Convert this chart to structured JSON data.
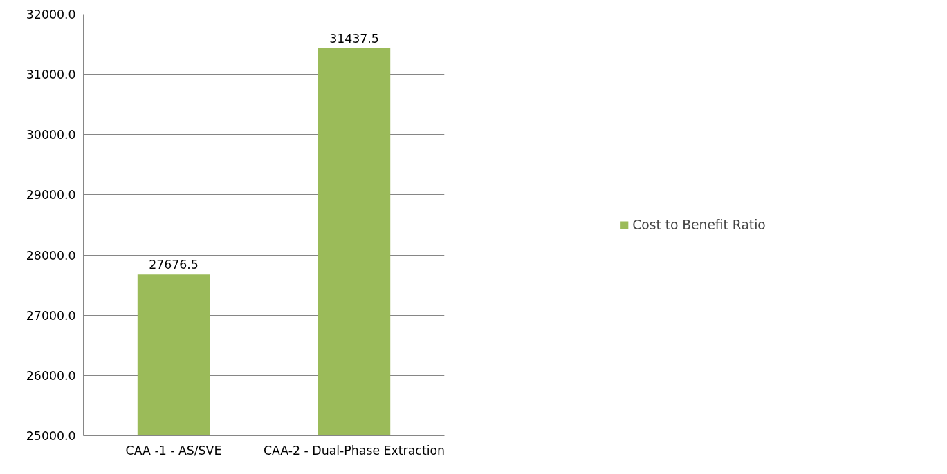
{
  "chart_data": {
    "type": "bar",
    "categories": [
      "CAA -1 - AS/SVE",
      "CAA-2 - Dual-Phase Extraction"
    ],
    "series": [
      {
        "name": "Cost to Benefit Ratio",
        "color": "#9bbb59",
        "values": [
          27676.5,
          31437.5
        ]
      }
    ],
    "ylim": [
      25000,
      32000
    ],
    "yticks": [
      {
        "value": 25000,
        "label": "25000.0"
      },
      {
        "value": 26000,
        "label": "26000.0"
      },
      {
        "value": 27000,
        "label": "27000.0"
      },
      {
        "value": 28000,
        "label": "28000.0"
      },
      {
        "value": 29000,
        "label": "29000.0"
      },
      {
        "value": 30000,
        "label": "30000.0"
      },
      {
        "value": 31000,
        "label": "31000.0"
      },
      {
        "value": 32000,
        "label": "32000.0"
      }
    ],
    "grid": "y",
    "legend": "right",
    "data_labels": true
  }
}
